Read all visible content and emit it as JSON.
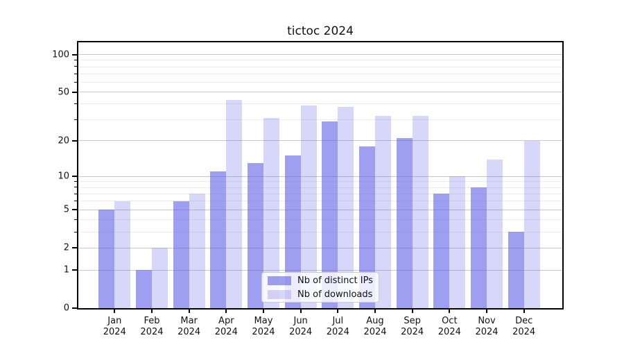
{
  "chart_data": {
    "type": "bar",
    "title": "tictoc 2024",
    "categories": [
      "Jan",
      "Feb",
      "Mar",
      "Apr",
      "May",
      "Jun",
      "Jul",
      "Aug",
      "Sep",
      "Oct",
      "Nov",
      "Dec"
    ],
    "year": "2024",
    "series": [
      {
        "name": "Nb of distinct IPs",
        "color": "rgba(95,95,232,0.60)",
        "values": [
          5,
          1,
          6,
          11,
          13,
          15,
          29,
          18,
          21,
          7,
          8,
          3
        ]
      },
      {
        "name": "Nb of downloads",
        "color": "rgba(95,95,232,0.25)",
        "values": [
          6,
          2,
          7,
          43,
          31,
          39,
          38,
          32,
          32,
          10,
          14,
          20
        ]
      }
    ],
    "xlabel": "",
    "ylabel": "",
    "y_scale": "log10(1+x)",
    "ylim": [
      0,
      125
    ],
    "y_ticks": [
      0,
      1,
      2,
      5,
      10,
      20,
      50,
      100
    ],
    "y_minor_ticks": [
      3,
      4,
      6,
      7,
      8,
      9,
      30,
      40,
      60,
      70,
      80,
      90
    ],
    "grid": "on",
    "legend_position": "lower center"
  },
  "colors": {
    "major_grid": "#c9c9c9",
    "minor_grid": "#ececec",
    "spine": "#000000",
    "background": "#ffffff"
  }
}
